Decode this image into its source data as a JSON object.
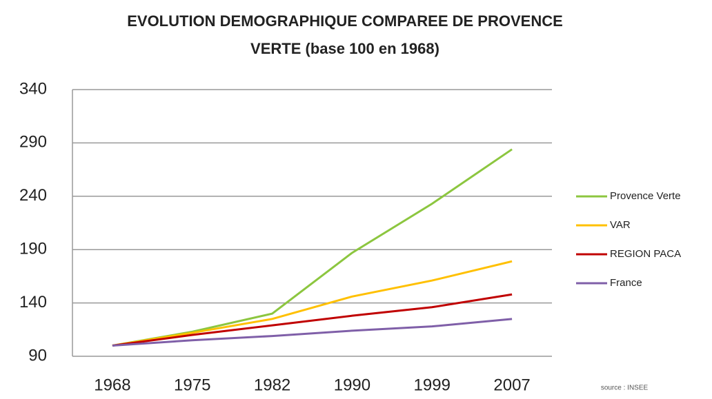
{
  "chart_data": {
    "type": "line",
    "title": [
      "EVOLUTION DEMOGRAPHIQUE COMPAREE DE PROVENCE",
      "VERTE (base 100 en 1968)"
    ],
    "categories": [
      "1968",
      "1975",
      "1982",
      "1990",
      "1999",
      "2007"
    ],
    "series": [
      {
        "name": "Provence Verte",
        "color": "#8cc63f",
        "values": [
          100,
          113,
          130,
          187,
          233,
          284
        ]
      },
      {
        "name": "VAR",
        "color": "#ffc000",
        "values": [
          100,
          112,
          125,
          146,
          161,
          179
        ]
      },
      {
        "name": "REGION PACA",
        "color": "#c00000",
        "values": [
          100,
          110,
          119,
          128,
          136,
          148
        ]
      },
      {
        "name": "France",
        "color": "#7f5fa8",
        "values": [
          100,
          105,
          109,
          114,
          118,
          125
        ]
      }
    ],
    "ylim": [
      90,
      340
    ],
    "yticks": [
      90,
      140,
      190,
      240,
      290,
      340
    ],
    "grid": true,
    "legend": "right",
    "annotation": "source : INSEE"
  }
}
